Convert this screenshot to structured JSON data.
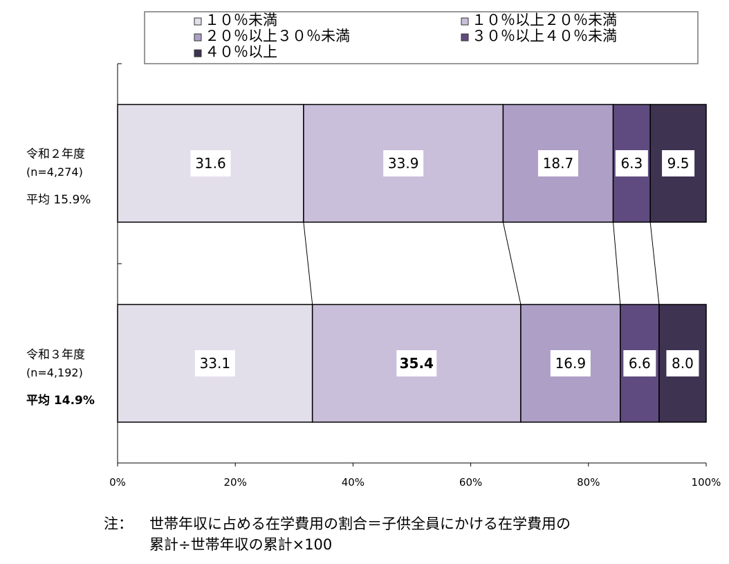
{
  "chart_data": {
    "type": "bar",
    "orientation": "horizontal",
    "stacked": "100%",
    "categories": [
      {
        "name": "令和２年度",
        "n": "(n=4,274)",
        "average": "平均 15.9%"
      },
      {
        "name": "令和３年度",
        "n": "(n=4,192)",
        "average": "平均 14.9%"
      }
    ],
    "series": [
      {
        "name": "１０％未満",
        "color": "#e3dfea",
        "values": [
          31.6,
          33.1
        ],
        "labels": [
          "31.6",
          "33.1"
        ]
      },
      {
        "name": "１０％以上２０％未満",
        "color": "#c9bfda",
        "values": [
          33.9,
          35.4
        ],
        "labels": [
          "33.9",
          "35.4"
        ]
      },
      {
        "name": "２０％以上３０％未満",
        "color": "#ad9fc6",
        "values": [
          18.7,
          16.9
        ],
        "labels": [
          "18.7",
          "16.9"
        ]
      },
      {
        "name": "３０％以上４０％未満",
        "color": "#5f4b7f",
        "values": [
          6.3,
          6.6
        ],
        "labels": [
          "6.3",
          "6.6"
        ]
      },
      {
        "name": "４０％以上",
        "color": "#3f3352",
        "values": [
          9.5,
          8.0
        ],
        "labels": [
          "9.5",
          "8.0"
        ]
      }
    ],
    "x_ticks": [
      "0%",
      "20%",
      "40%",
      "60%",
      "80%",
      "100%"
    ],
    "xlim": [
      0,
      100
    ],
    "legend_position": "top",
    "grid": false
  },
  "note": {
    "label": "注：",
    "line1": "世帯年収に占める在学費用の割合＝子供全員にかける在学費用の",
    "line2": "累計÷世帯年収の累計×100"
  }
}
